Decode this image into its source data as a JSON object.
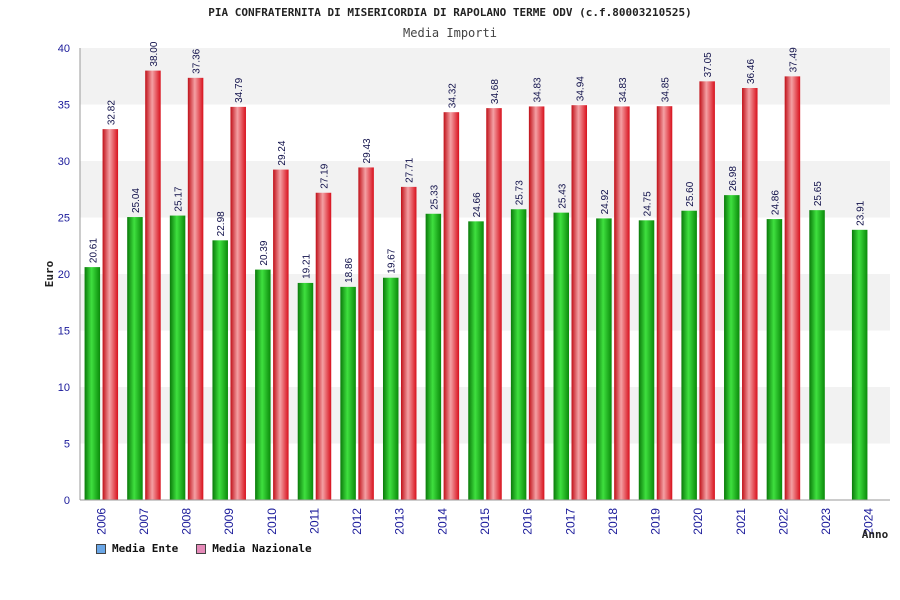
{
  "title": "PIA CONFRATERNITA DI MISERICORDIA DI RAPOLANO TERME ODV (c.f.80003210525)",
  "subtitle": "Media Importi",
  "colors": {
    "ente": "#1db81d",
    "nazionale": "#e8202a",
    "legend_ente": "#6aa6e6",
    "legend_nazionale": "#e58ab8",
    "band": "#f2f2f2",
    "axis": "#999999"
  },
  "chart_data": {
    "type": "bar",
    "title": "Media Importi",
    "xlabel": "Anno",
    "ylabel": "Euro",
    "ylim": [
      0,
      40
    ],
    "yticks": [
      0,
      5,
      10,
      15,
      20,
      25,
      30,
      35,
      40
    ],
    "grid": "alternating horizontal bands",
    "legend_position": "bottom-left",
    "categories": [
      "2006",
      "2007",
      "2008",
      "2009",
      "2010",
      "2011",
      "2012",
      "2013",
      "2014",
      "2015",
      "2016",
      "2017",
      "2018",
      "2019",
      "2020",
      "2021",
      "2022",
      "2023",
      "2024"
    ],
    "series": [
      {
        "name": "Media Ente",
        "values": [
          20.61,
          25.04,
          25.17,
          22.98,
          20.39,
          19.21,
          18.86,
          19.67,
          25.33,
          24.66,
          25.73,
          25.43,
          24.92,
          24.75,
          25.6,
          26.98,
          24.86,
          25.65,
          23.91
        ],
        "labels": [
          "20.61",
          "25.04",
          "25.17",
          "22.98",
          "20.39",
          "19.21",
          "18.86",
          "19.67",
          "25.33",
          "24.66",
          "25.73",
          "25.43",
          "24.92",
          "24.75",
          "25.60",
          "26.98",
          "24.86",
          "25.65",
          "23.91"
        ]
      },
      {
        "name": "Media Nazionale",
        "values": [
          32.82,
          38.0,
          37.36,
          34.79,
          29.24,
          27.19,
          29.43,
          27.71,
          34.32,
          34.68,
          34.83,
          34.94,
          34.83,
          34.85,
          37.05,
          36.46,
          37.49,
          null,
          null
        ],
        "labels": [
          "32.82",
          "38.00",
          "37.36",
          "34.79",
          "29.24",
          "27.19",
          "29.43",
          "27.71",
          "34.32",
          "34.68",
          "34.83",
          "34.94",
          "34.83",
          "34.85",
          "37.05",
          "36.46",
          "37.49",
          null,
          null
        ]
      }
    ]
  }
}
